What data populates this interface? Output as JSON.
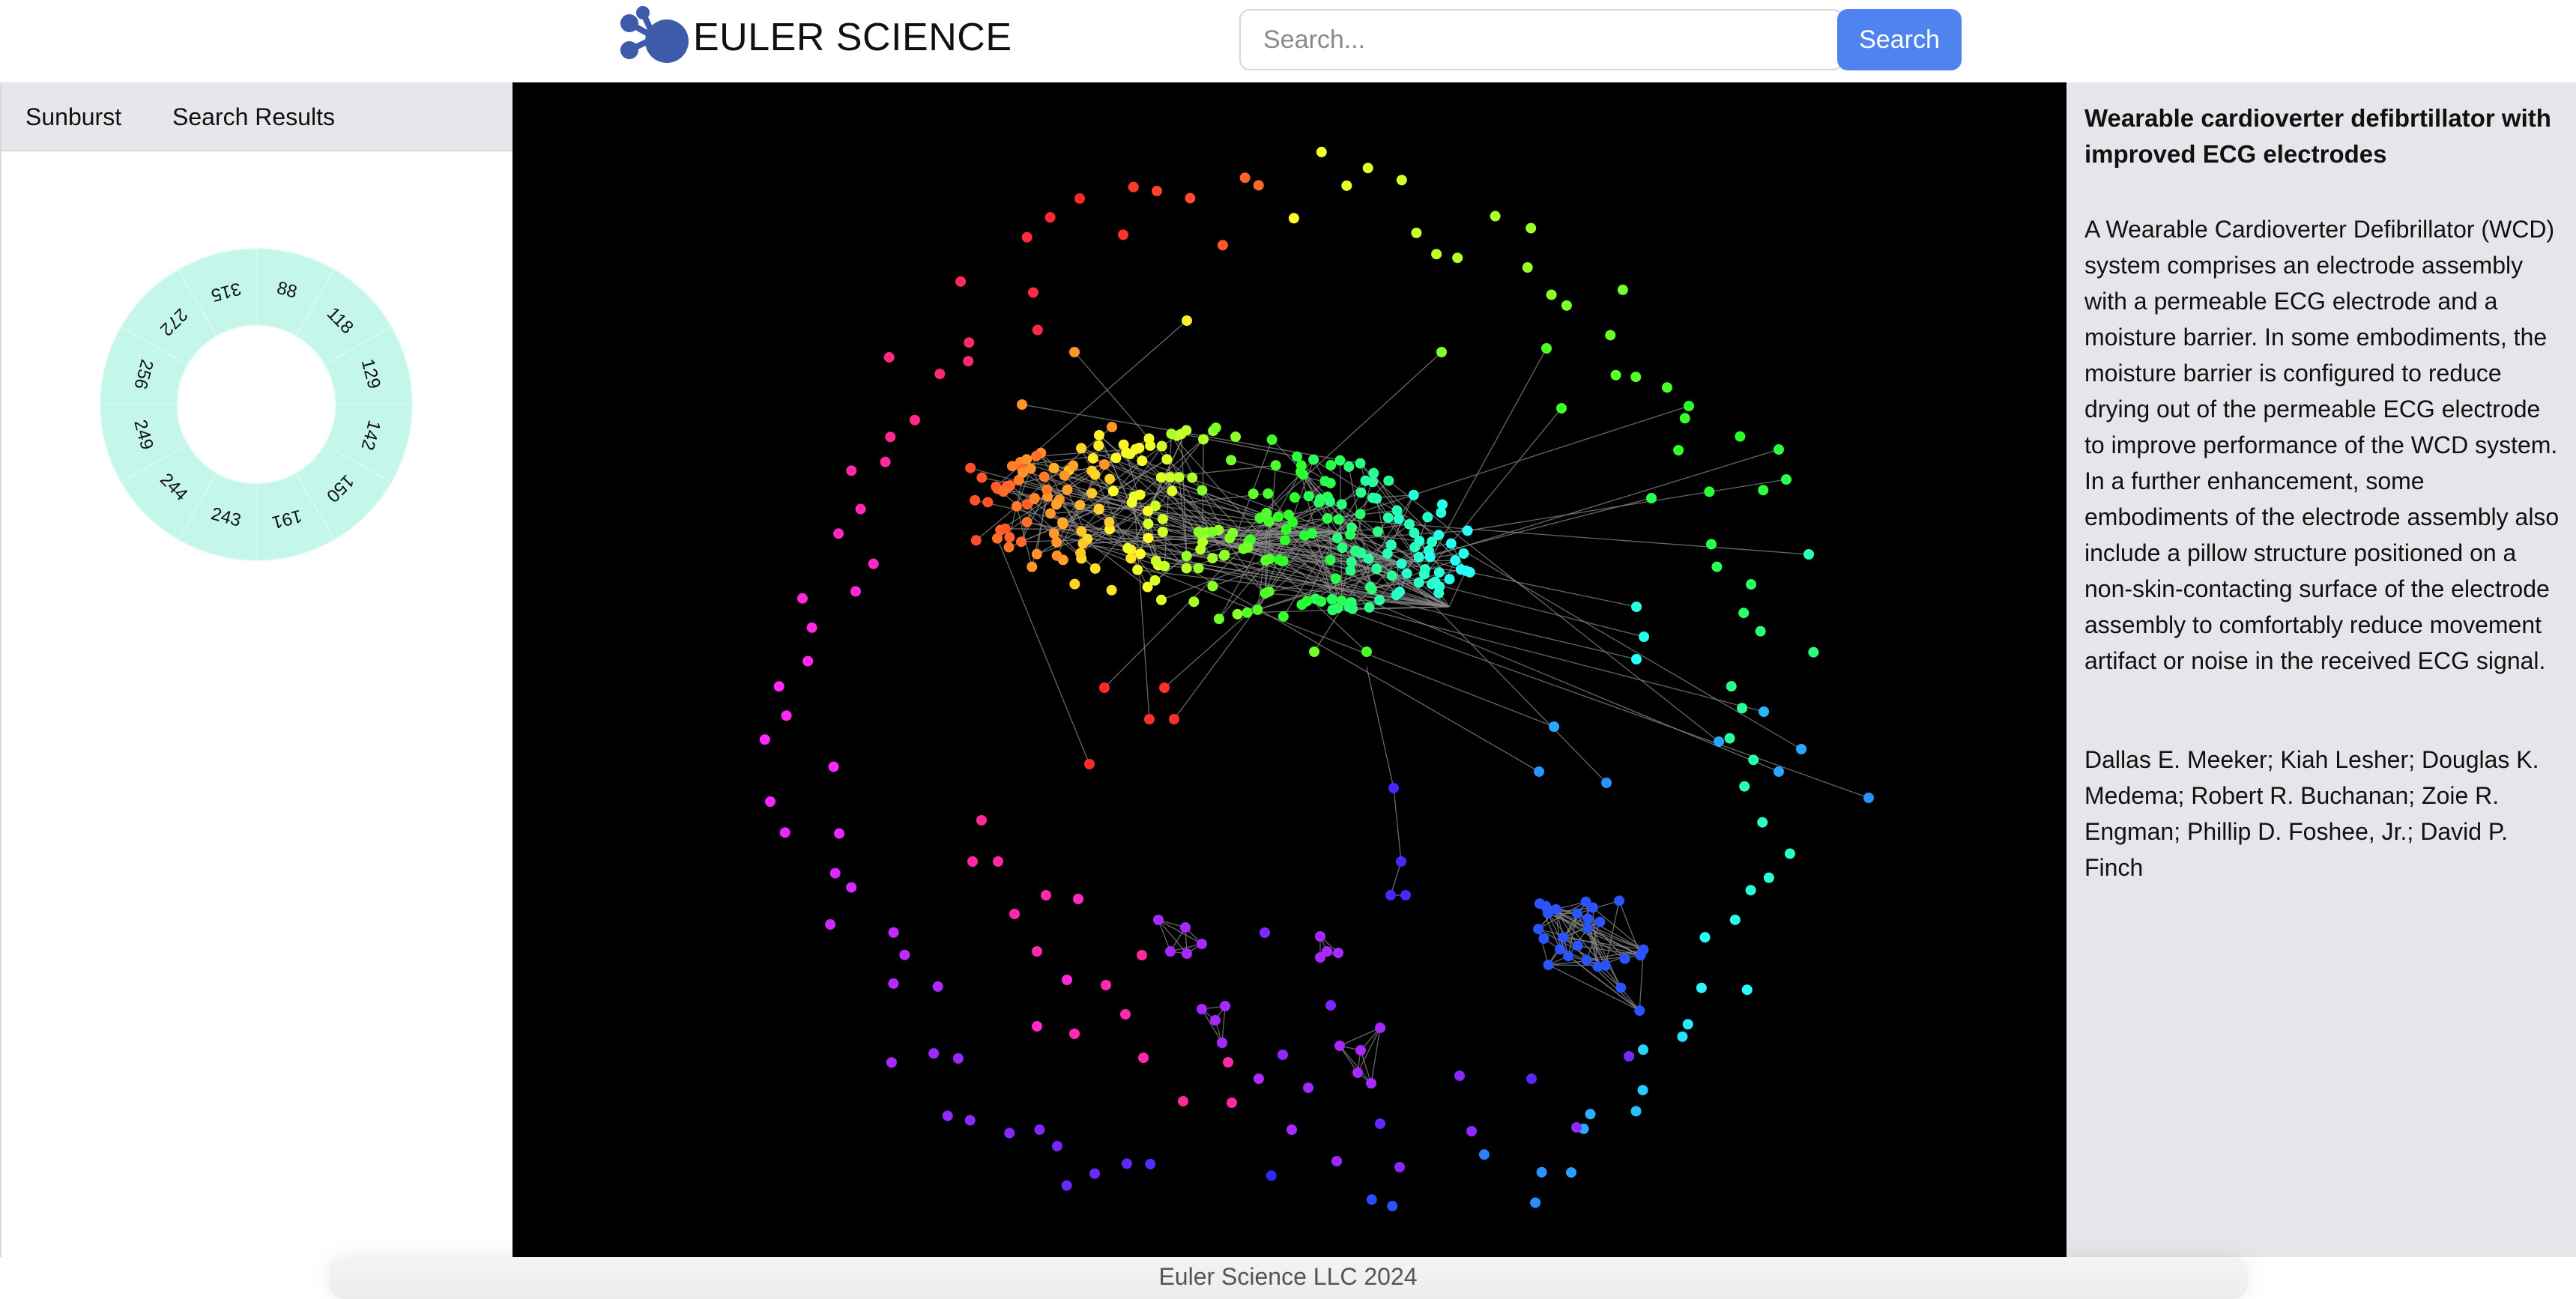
{
  "header": {
    "logo_text": "EULER SCIENCE",
    "search_placeholder": "Search...",
    "search_button_label": "Search",
    "brand_color": "#3d5ba9",
    "accent_color": "#4f84f0"
  },
  "sidebar": {
    "tabs": [
      {
        "label": "Sunburst"
      },
      {
        "label": "Search Results"
      }
    ],
    "sunburst": {
      "fill_color": "#c4f7ea",
      "segments": [
        "88",
        "118",
        "129",
        "142",
        "150",
        "191",
        "243",
        "244",
        "249",
        "256",
        "272",
        "315"
      ]
    }
  },
  "graph": {
    "background": "#000000",
    "edge_color": "#8a8a8a"
  },
  "document": {
    "title": "Wearable cardioverter defibrtillator with improved ECG electrodes",
    "abstract": "A Wearable Cardioverter Defibrillator (WCD) system comprises an electrode assembly with a permeable ECG electrode and a moisture barrier. In some embodiments, the moisture barrier is configured to reduce drying out of the permeable ECG electrode to improve performance of the WCD system. In a further enhancement, some embodiments of the electrode assembly also include a pillow structure positioned on a non-skin-contacting surface of the electrode assembly to comfortably reduce movement artifact or noise in the received ECG signal.",
    "authors": "Dallas E. Meeker; Kiah Lesher; Douglas K. Medema; Robert R. Buchanan; Zoie R. Engman; Phillip D. Foshee, Jr.; David P. Finch"
  },
  "footer": {
    "text": "Euler Science LLC 2024"
  }
}
